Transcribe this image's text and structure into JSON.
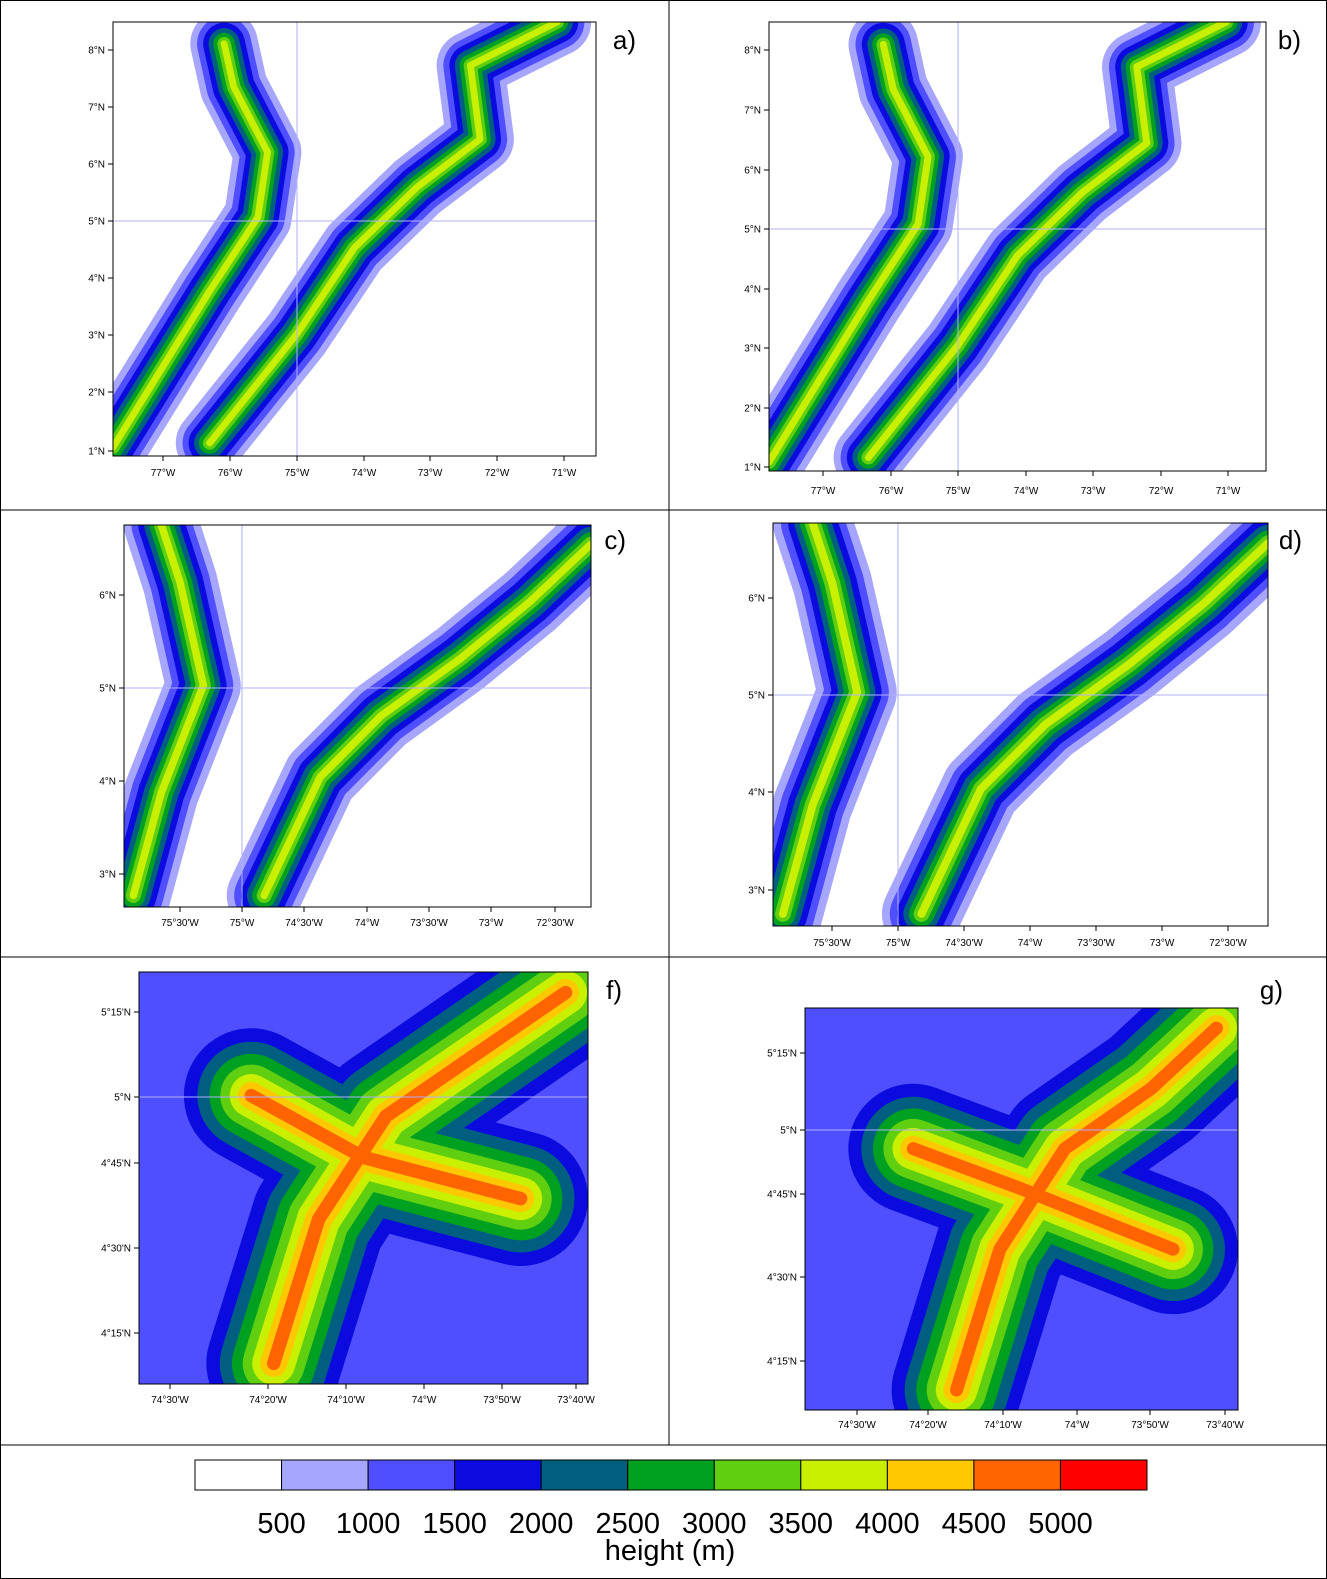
{
  "panels": [
    {
      "label": "a)",
      "xticks": [
        "77°W",
        "76°W",
        "75°W",
        "74°W",
        "73°W",
        "72°W",
        "71°W"
      ],
      "yticks": [
        "8°N",
        "7°N",
        "6°N",
        "5°N",
        "4°N",
        "3°N",
        "2°N",
        "1°N"
      ]
    },
    {
      "label": "b)",
      "xticks": [
        "77°W",
        "76°W",
        "75°W",
        "74°W",
        "73°W",
        "72°W",
        "71°W"
      ],
      "yticks": [
        "8°N",
        "7°N",
        "6°N",
        "5°N",
        "4°N",
        "3°N",
        "2°N",
        "1°N"
      ]
    },
    {
      "label": "c)",
      "xticks": [
        "75°30'W",
        "75°W",
        "74°30'W",
        "74°W",
        "73°30'W",
        "73°W",
        "72°30'W"
      ],
      "yticks": [
        "6°N",
        "5°N",
        "4°N",
        "3°N"
      ]
    },
    {
      "label": "d)",
      "xticks": [
        "75°30'W",
        "75°W",
        "74°30'W",
        "74°W",
        "73°30'W",
        "73°W",
        "72°30'W"
      ],
      "yticks": [
        "6°N",
        "5°N",
        "4°N",
        "3°N"
      ]
    },
    {
      "label": "f)",
      "xticks": [
        "74°30'W",
        "74°20'W",
        "74°10'W",
        "74°W",
        "73°50'W",
        "73°40'W"
      ],
      "yticks": [
        "5°15'N",
        "5°N",
        "4°45'N",
        "4°30'N",
        "4°15'N"
      ]
    },
    {
      "label": "g)",
      "xticks": [
        "74°30'W",
        "74°20'W",
        "74°10'W",
        "74°W",
        "73°50'W",
        "73°40'W"
      ],
      "yticks": [
        "5°15'N",
        "5°N",
        "4°45'N",
        "4°30'N",
        "4°15'N"
      ]
    }
  ],
  "colorbar": {
    "levels": [
      500,
      1000,
      1500,
      2000,
      2500,
      3000,
      3500,
      4000,
      4500,
      5000
    ],
    "colors": [
      "#ffffff",
      "#a6a6ff",
      "#4f4fff",
      "#0b0be0",
      "#005f80",
      "#00a020",
      "#5fcf10",
      "#c8f000",
      "#ffc800",
      "#ff6400",
      "#ff0000"
    ],
    "title": "height (m)"
  }
}
